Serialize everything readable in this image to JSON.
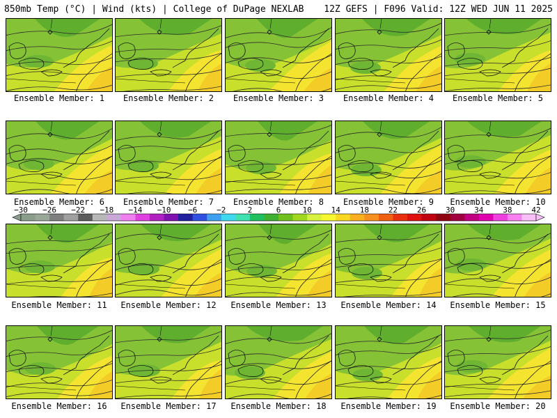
{
  "header": {
    "left": "850mb Temp (°C) | Wind (kts) | College of DuPage NEXLAB",
    "right": "12Z GEFS | F096 Valid: 12Z WED JUN 11 2025"
  },
  "panels": [
    {
      "label": "Ensemble Member: 1"
    },
    {
      "label": "Ensemble Member: 2"
    },
    {
      "label": "Ensemble Member: 3"
    },
    {
      "label": "Ensemble Member: 4"
    },
    {
      "label": "Ensemble Member: 5"
    },
    {
      "label": "Ensemble Member: 6"
    },
    {
      "label": "Ensemble Member: 7"
    },
    {
      "label": "Ensemble Member: 8"
    },
    {
      "label": "Ensemble Member: 9"
    },
    {
      "label": "Ensemble Member: 10"
    },
    {
      "label": "Ensemble Member: 11"
    },
    {
      "label": "Ensemble Member: 12"
    },
    {
      "label": "Ensemble Member: 13"
    },
    {
      "label": "Ensemble Member: 14"
    },
    {
      "label": "Ensemble Member: 15"
    },
    {
      "label": "Ensemble Member: 16"
    },
    {
      "label": "Ensemble Member: 17"
    },
    {
      "label": "Ensemble Member: 18"
    },
    {
      "label": "Ensemble Member: 19"
    },
    {
      "label": "Ensemble Member: 20"
    }
  ],
  "colorbar": {
    "tick_labels": [
      "−30",
      "−26",
      "−22",
      "−18",
      "−14",
      "−10",
      "−6",
      "−2",
      "2",
      "6",
      "10",
      "14",
      "18",
      "22",
      "26",
      "30",
      "34",
      "38",
      "42"
    ],
    "colors": [
      "#8b9d8b",
      "#9aa89a",
      "#7f7f7f",
      "#a0a0a0",
      "#5c5c5c",
      "#b8b8b8",
      "#c8a8d8",
      "#f080f0",
      "#e040e0",
      "#b020c0",
      "#8010b0",
      "#2020a0",
      "#3050e0",
      "#40a0f0",
      "#40d8f0",
      "#40e0b0",
      "#20c060",
      "#40b030",
      "#70c020",
      "#a0d820",
      "#d8f040",
      "#f8f830",
      "#f8d820",
      "#f8b020",
      "#f89020",
      "#f06010",
      "#e83010",
      "#e01010",
      "#c00010",
      "#900010",
      "#a00040",
      "#c00080",
      "#e000b0",
      "#f040e0",
      "#f880f0",
      "#f8c0f8"
    ]
  }
}
